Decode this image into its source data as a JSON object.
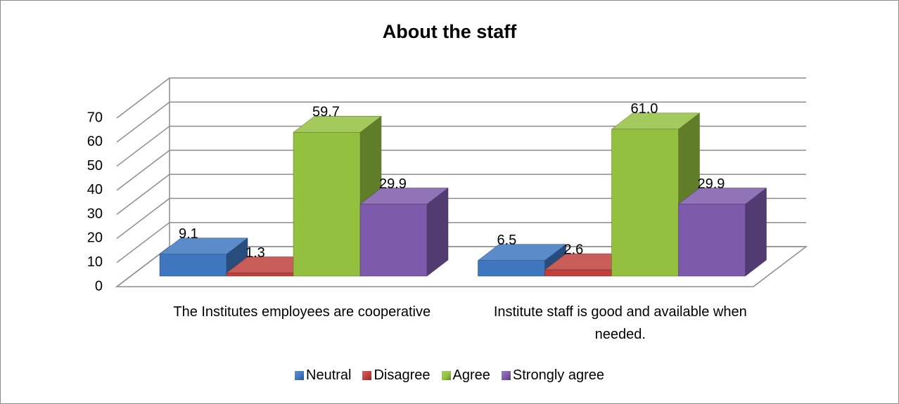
{
  "chart_data": {
    "type": "bar3d",
    "title": "About the staff",
    "categories": [
      "The Institutes employees are cooperative",
      "Institute staff is good and available when needed."
    ],
    "series": [
      {
        "name": "Neutral",
        "color": "#3e77c0",
        "values": [
          9.1,
          6.5
        ]
      },
      {
        "name": "Disagree",
        "color": "#c0403d",
        "values": [
          1.3,
          2.6
        ]
      },
      {
        "name": "Agree",
        "color": "#94c040",
        "values": [
          59.7,
          61.0
        ],
        "value_labels": [
          "59.7",
          "61.0"
        ]
      },
      {
        "name": "Strongly agree",
        "color": "#7d5aac",
        "values": [
          29.9,
          29.9
        ]
      }
    ],
    "ylim": [
      0,
      70
    ],
    "yticks": [
      0,
      10,
      20,
      30,
      40,
      50,
      60,
      70
    ],
    "grid": true,
    "legend": "bottom"
  }
}
